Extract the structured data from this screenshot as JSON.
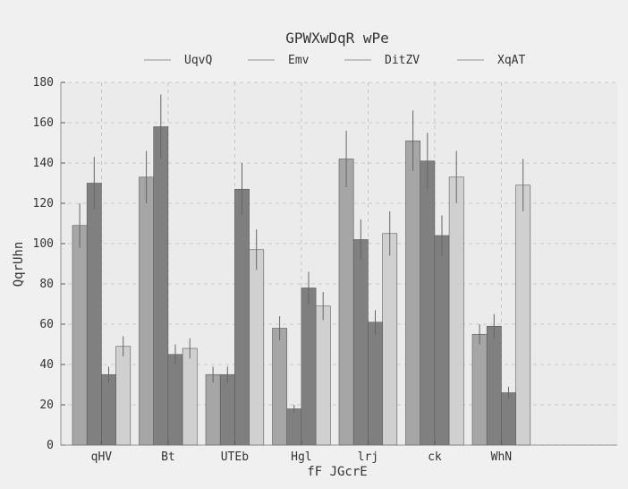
{
  "chart_data": {
    "type": "bar",
    "title": "GPWXwDqR wPe",
    "xlabel": "fF JGcrE",
    "ylabel": "QqrUhn",
    "categories": [
      "qHV",
      "Bt",
      "UTEb",
      "Hgl",
      "lrj",
      "ck",
      "WhN"
    ],
    "ylim": [
      0,
      180
    ],
    "yticks": [
      0,
      20,
      40,
      60,
      80,
      100,
      120,
      140,
      160,
      180
    ],
    "grid": true,
    "legend_position": "top",
    "series": [
      {
        "name": "UqvQ",
        "color": "#a6a6a6",
        "values": [
          109,
          133,
          35,
          58,
          142,
          151,
          55
        ],
        "errors": [
          11,
          13,
          4,
          6,
          14,
          15,
          5
        ]
      },
      {
        "name": "Emv",
        "color": "#808080",
        "values": [
          130,
          158,
          35,
          18,
          102,
          141,
          59
        ],
        "errors": [
          13,
          16,
          4,
          2,
          10,
          14,
          6
        ]
      },
      {
        "name": "DitZV",
        "color": "#7f7f7f",
        "values": [
          35,
          45,
          127,
          78,
          61,
          104,
          26
        ],
        "errors": [
          4,
          5,
          13,
          8,
          6,
          10,
          3
        ]
      },
      {
        "name": "XqAT",
        "color": "#d0d0d0",
        "values": [
          49,
          48,
          97,
          69,
          105,
          133,
          129
        ],
        "errors": [
          5,
          5,
          10,
          7,
          11,
          13,
          13
        ]
      }
    ]
  }
}
